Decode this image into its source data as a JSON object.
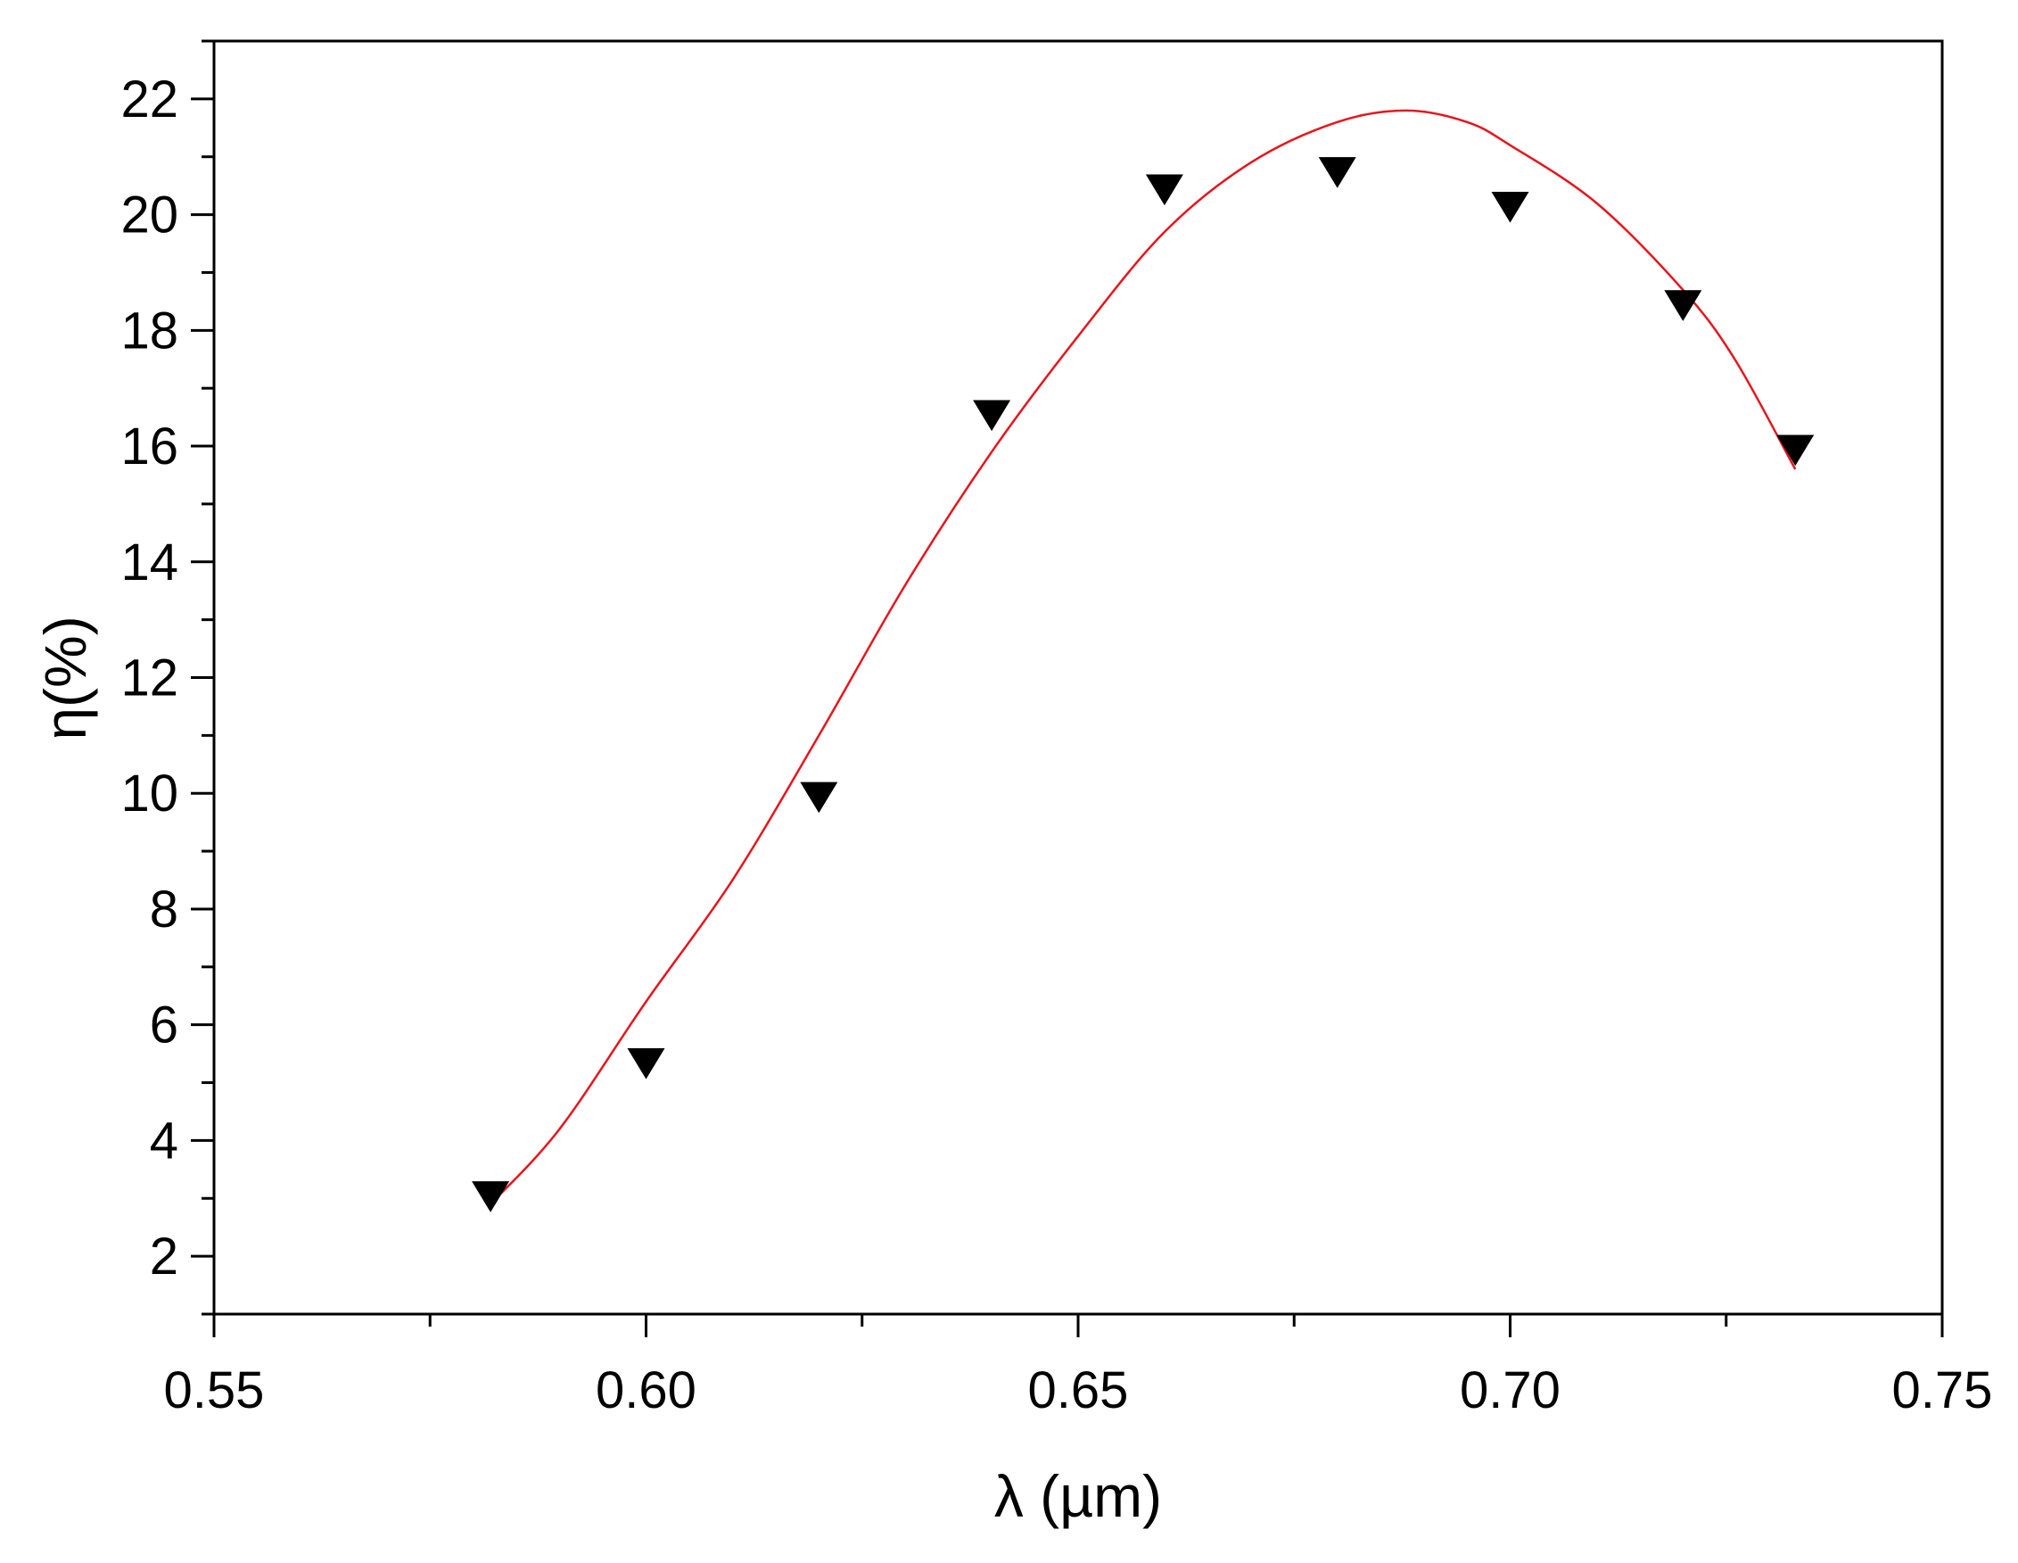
{
  "chart_data": {
    "type": "scatter",
    "title": "",
    "xlabel": "λ (µm)",
    "ylabel": "η(%)",
    "xlim": [
      0.55,
      0.75
    ],
    "ylim": [
      1,
      23
    ],
    "x_ticks": [
      0.55,
      0.6,
      0.65,
      0.7,
      0.75
    ],
    "x_tick_labels": [
      "0.55",
      "0.60",
      "0.65",
      "0.70",
      "0.75"
    ],
    "x_minor_step": 0.025,
    "y_ticks": [
      2,
      4,
      6,
      8,
      10,
      12,
      14,
      16,
      18,
      20,
      22
    ],
    "y_tick_labels": [
      "2",
      "4",
      "6",
      "8",
      "10",
      "12",
      "14",
      "16",
      "18",
      "20",
      "22"
    ],
    "y_minor_step": 1,
    "grid": false,
    "legend": "none",
    "series": [
      {
        "kind": "scatter",
        "marker": "inverted-triangle",
        "color": "#000000",
        "x": [
          0.582,
          0.6,
          0.62,
          0.64,
          0.66,
          0.68,
          0.7,
          0.72,
          0.733
        ],
        "y": [
          3.1,
          5.4,
          10.0,
          16.6,
          20.5,
          20.8,
          20.2,
          18.5,
          16.0
        ]
      },
      {
        "kind": "fit-line",
        "color": "#e8141c",
        "x": [
          0.582,
          0.59,
          0.6,
          0.61,
          0.62,
          0.63,
          0.64,
          0.65,
          0.66,
          0.67,
          0.68,
          0.688,
          0.695,
          0.7,
          0.71,
          0.72,
          0.726,
          0.733
        ],
        "y": [
          2.9,
          4.2,
          6.4,
          8.5,
          11.0,
          13.6,
          15.9,
          17.9,
          19.7,
          20.9,
          21.6,
          21.8,
          21.6,
          21.2,
          20.2,
          18.7,
          17.5,
          15.6
        ]
      }
    ]
  }
}
